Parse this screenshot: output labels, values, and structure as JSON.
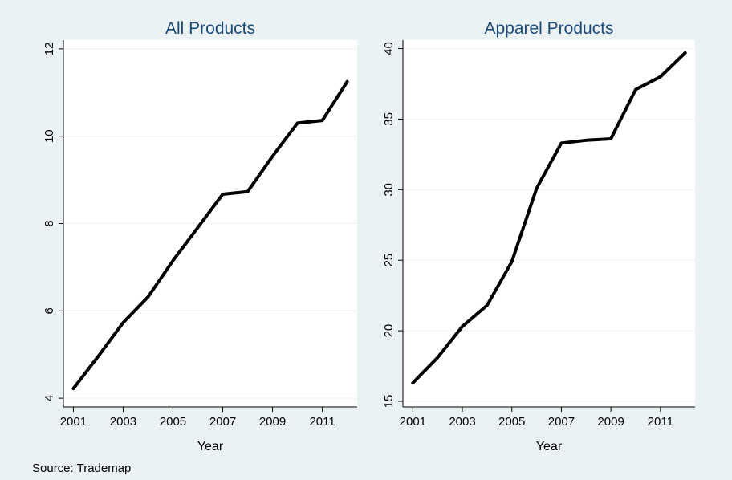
{
  "source_note": "Source: Trademap",
  "colors": {
    "figure_background": "#eaf2f3",
    "plot_background": "#ffffff",
    "title": "#1e4a7a",
    "line": "#000000",
    "grid": "#eaf2f3",
    "text": "#000000"
  },
  "chart_data": [
    {
      "type": "line",
      "title": "All Products",
      "xlabel": "Year",
      "ylabel": "",
      "x": [
        2001,
        2002,
        2003,
        2004,
        2005,
        2006,
        2007,
        2008,
        2009,
        2010,
        2011,
        2012
      ],
      "series": [
        {
          "values": [
            4.22,
            4.96,
            5.73,
            6.32,
            7.15,
            7.91,
            8.67,
            8.73,
            9.54,
            10.3,
            10.36,
            11.25
          ]
        }
      ],
      "xticks": [
        2001,
        2003,
        2005,
        2007,
        2009,
        2011
      ],
      "yticks": [
        4,
        6,
        8,
        10,
        12
      ],
      "xlim": [
        2000.6,
        2012.4
      ],
      "ylim": [
        3.8,
        12.2
      ],
      "grid": true,
      "legend": "none"
    },
    {
      "type": "line",
      "title": "Apparel Products",
      "xlabel": "Year",
      "ylabel": "",
      "x": [
        2001,
        2002,
        2003,
        2004,
        2005,
        2006,
        2007,
        2008,
        2009,
        2010,
        2011,
        2012
      ],
      "series": [
        {
          "values": [
            16.3,
            18.1,
            20.3,
            21.8,
            24.9,
            30.1,
            33.3,
            33.5,
            33.6,
            37.1,
            38.0,
            39.7
          ]
        }
      ],
      "xticks": [
        2001,
        2003,
        2005,
        2007,
        2009,
        2011
      ],
      "yticks": [
        15,
        20,
        25,
        30,
        35,
        40
      ],
      "xlim": [
        2000.6,
        2012.4
      ],
      "ylim": [
        14.6,
        40.6
      ],
      "grid": true,
      "legend": "none"
    }
  ]
}
